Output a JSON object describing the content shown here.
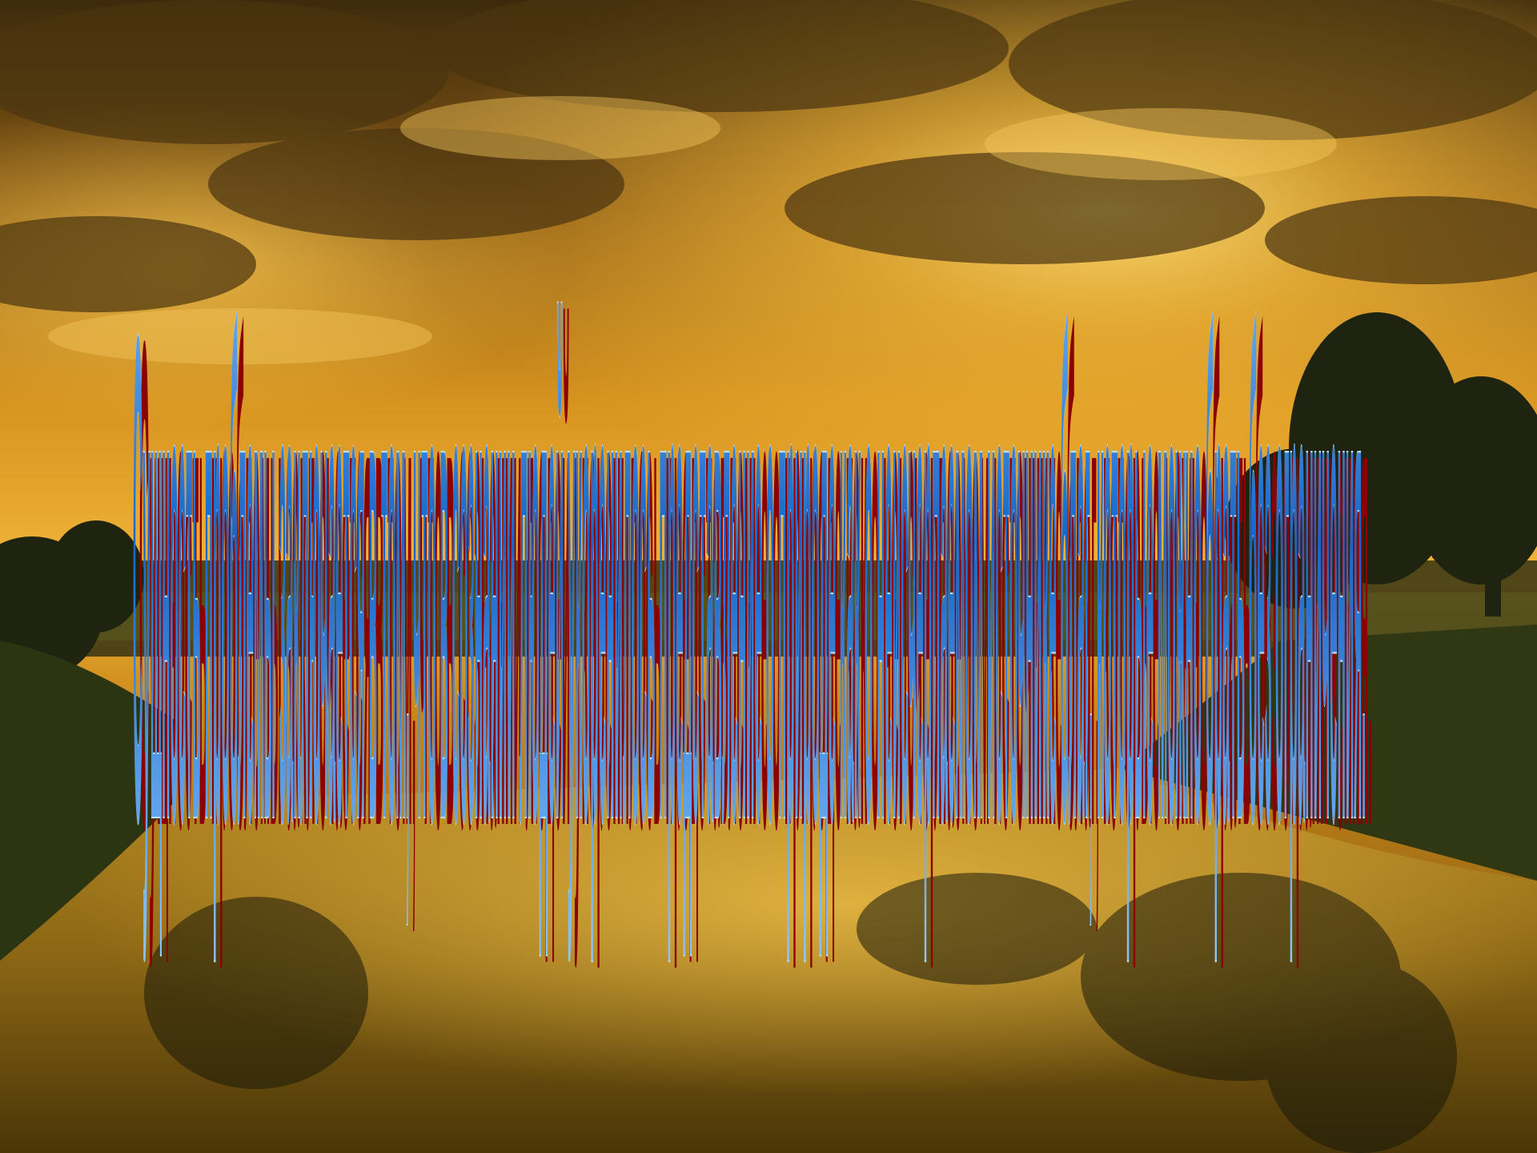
{
  "slide": {
    "heading": "Сущность проблемы заключается в том, что в сознании людей укоренилось представление о природе как о неисчерпаемом источнике благ, которые можно брать без ограничения.",
    "colors": {
      "text_fill": "#1565c8",
      "text_light": "#8ec8ff",
      "text_outline": "#b8e0ff",
      "shadow": "#8b0000",
      "sky_bright": "#ffd25a",
      "sky_mid": "#e39a1c",
      "sky_dark": "#5a3a10",
      "water": "#7a5a12",
      "trees": "#1e2410"
    },
    "background": {
      "scene": "sunset sky over river with trees"
    }
  }
}
